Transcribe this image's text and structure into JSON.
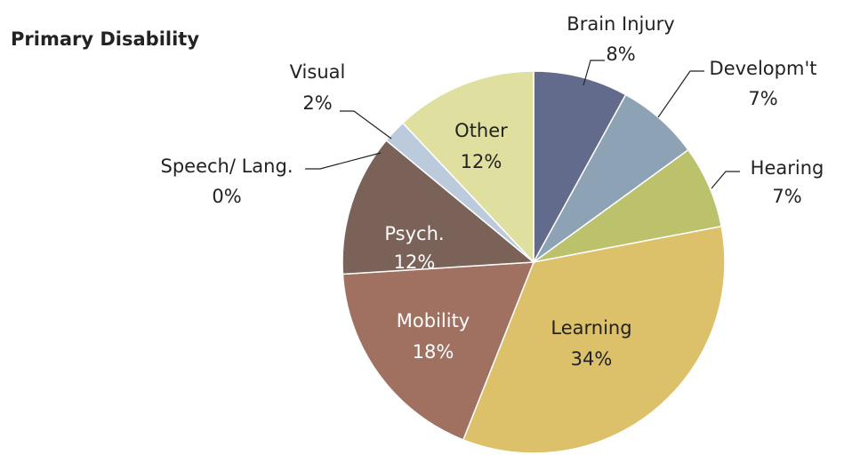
{
  "chart_data": {
    "type": "pie",
    "title": "Primary Disability",
    "categories": [
      "Brain Injury",
      "Developm't",
      "Hearing",
      "Learning",
      "Mobility",
      "Psych.",
      "Speech/ Lang.",
      "Visual",
      "Other"
    ],
    "values": [
      8,
      7,
      7,
      34,
      18,
      12,
      0,
      2,
      12
    ],
    "value_labels": [
      "8%",
      "7%",
      "7%",
      "34%",
      "18%",
      "12%",
      "0%",
      "2%",
      "12%"
    ],
    "colors": [
      "#636b8c",
      "#8da3b5",
      "#bcc16b",
      "#dcc06a",
      "#a07060",
      "#7b6259",
      "#b5c4d6",
      "#bccbdc",
      "#dfe0a0"
    ]
  }
}
